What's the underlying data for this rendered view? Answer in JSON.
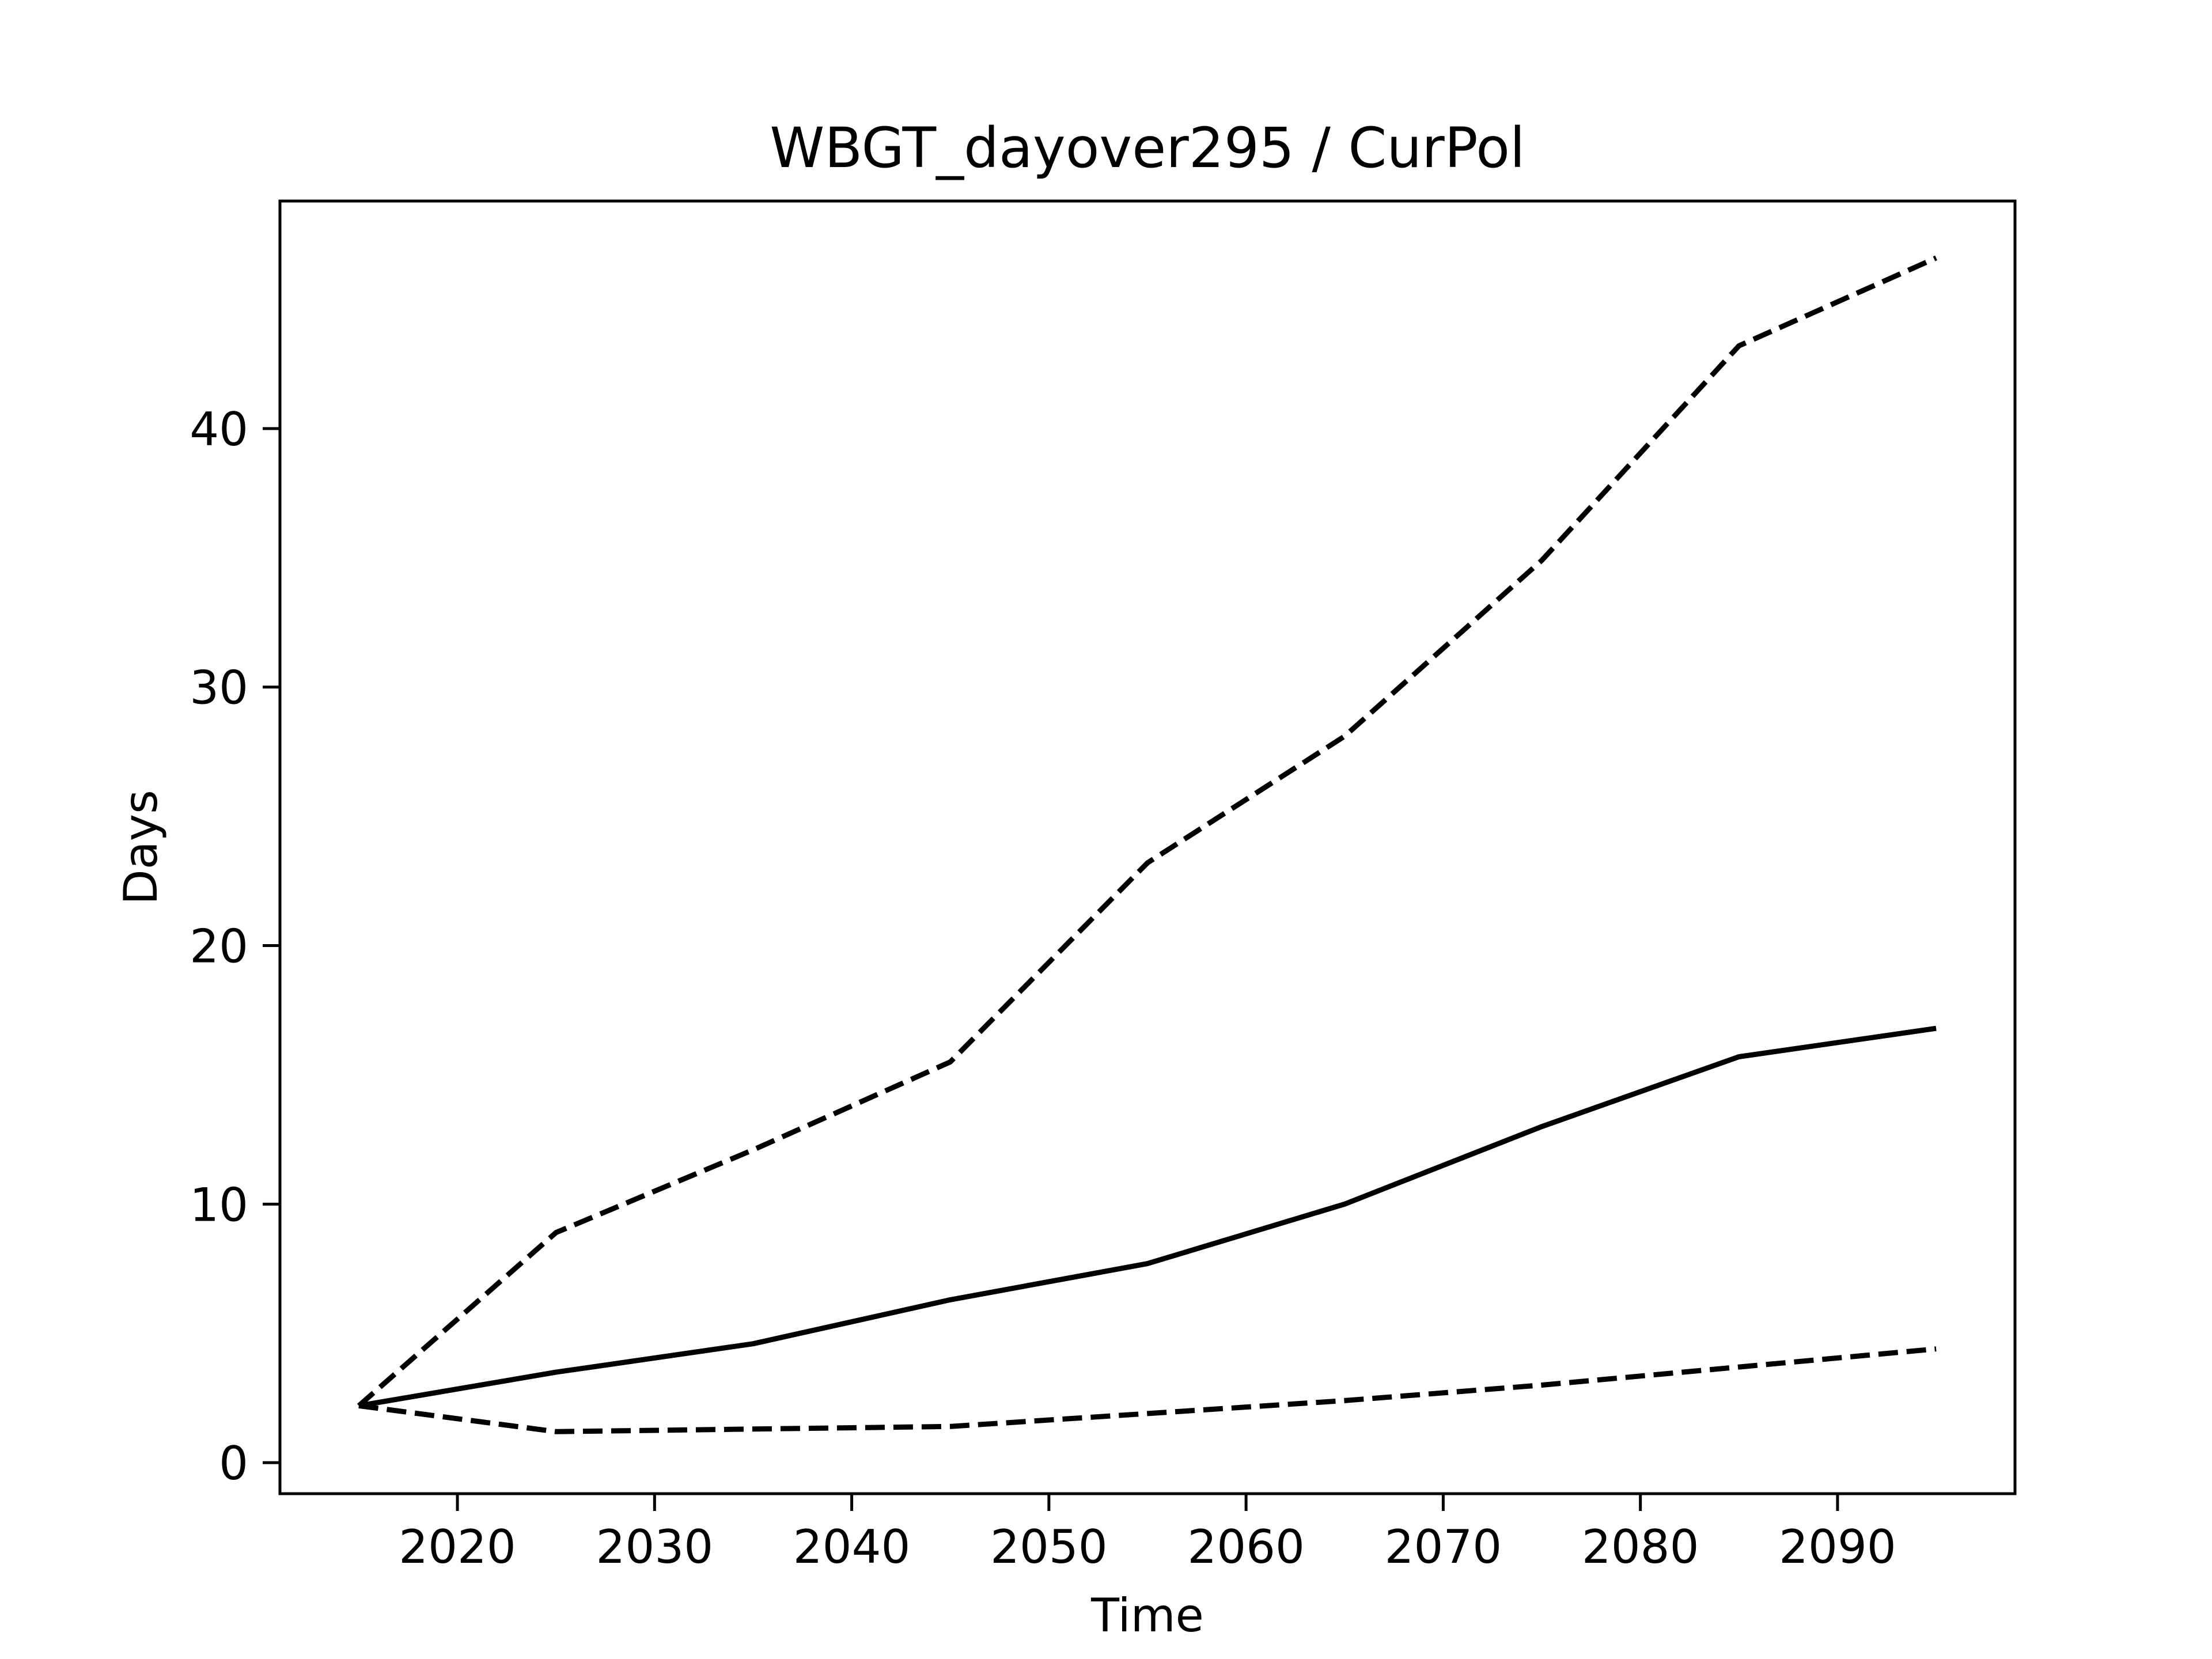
{
  "chart_data": {
    "type": "line",
    "title": "WBGT_dayover295 / CurPol",
    "xlabel": "Time",
    "ylabel": "Days",
    "xlim": [
      2011,
      2099
    ],
    "ylim": [
      -1.2,
      48.8
    ],
    "xticks": [
      2020,
      2030,
      2040,
      2050,
      2060,
      2070,
      2080,
      2090
    ],
    "yticks": [
      0,
      10,
      20,
      30,
      40
    ],
    "grid": false,
    "legend": "none",
    "x": [
      2015,
      2025,
      2035,
      2045,
      2055,
      2065,
      2075,
      2085,
      2095
    ],
    "series": [
      {
        "style": "dashed",
        "color": "#000000",
        "values": [
          2.2,
          8.9,
          12.1,
          15.5,
          23.2,
          28.1,
          34.9,
          43.2,
          46.6
        ]
      },
      {
        "style": "solid",
        "color": "#000000",
        "values": [
          2.2,
          3.5,
          4.6,
          6.3,
          7.7,
          10.0,
          13.0,
          15.7,
          16.8
        ]
      },
      {
        "style": "dashed",
        "color": "#000000",
        "values": [
          2.2,
          1.2,
          1.3,
          1.4,
          1.9,
          2.4,
          3.0,
          3.7,
          4.4
        ]
      }
    ]
  }
}
